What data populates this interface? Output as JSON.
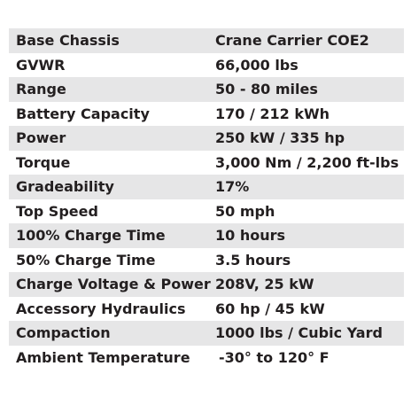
{
  "table": {
    "rows": [
      [
        "Base Chassis",
        "Crane Carrier COE2"
      ],
      [
        "GVWR",
        "66,000 lbs"
      ],
      [
        "Range",
        "50 - 80 miles"
      ],
      [
        "Battery Capacity",
        "170 / 212 kWh"
      ],
      [
        "Power",
        "250 kW / 335 hp"
      ],
      [
        "Torque",
        "3,000 Nm / 2,200 ft-lbs"
      ],
      [
        "Gradeability",
        "17%"
      ],
      [
        "Top Speed",
        "50 mph"
      ],
      [
        "100% Charge Time",
        "10 hours"
      ],
      [
        "50% Charge Time",
        "3.5 hours"
      ],
      [
        "Charge Voltage & Power",
        "208V, 25 kW"
      ],
      [
        "Accessory Hydraulics",
        "60 hp / 45 kW"
      ],
      [
        "Compaction",
        "1000 lbs / Cubic Yard"
      ],
      [
        "Ambient Temperature",
        "-30° to 120° F"
      ]
    ]
  }
}
